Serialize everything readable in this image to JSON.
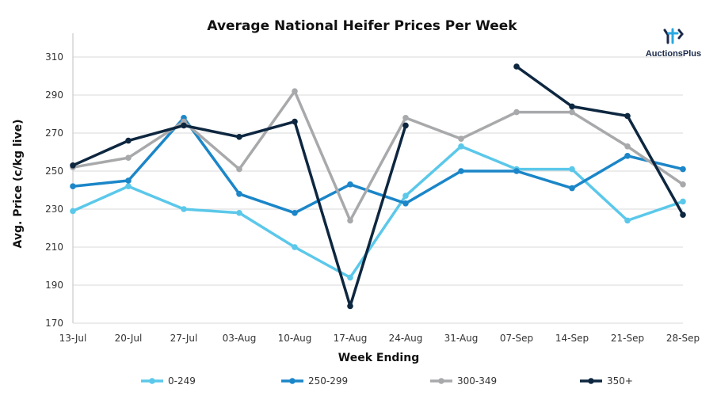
{
  "brand": {
    "name": "AuctionsPlus"
  },
  "chart_data": {
    "type": "line",
    "title": "Average National Heifer Prices Per Week",
    "xlabel": "Week Ending",
    "ylabel": "Avg. Price (c/kg live)",
    "categories": [
      "13-Jul",
      "20-Jul",
      "27-Jul",
      "03-Aug",
      "10-Aug",
      "17-Aug",
      "24-Aug",
      "31-Aug",
      "07-Sep",
      "14-Sep",
      "21-Sep",
      "28-Sep"
    ],
    "ylim": [
      170,
      320
    ],
    "yticks": [
      170,
      190,
      210,
      230,
      250,
      270,
      290,
      310
    ],
    "grid": "horizontal",
    "legend_position": "bottom",
    "series": [
      {
        "name": "0-249",
        "color": "#5bc8ea",
        "values": [
          229,
          242,
          230,
          228,
          210,
          194,
          237,
          263,
          251,
          251,
          224,
          234
        ]
      },
      {
        "name": "250-299",
        "color": "#1b86c8",
        "values": [
          242,
          245,
          278,
          238,
          228,
          243,
          233,
          250,
          250,
          241,
          258,
          251
        ]
      },
      {
        "name": "300-349",
        "color": "#a8a9ab",
        "values": [
          252,
          257,
          276,
          251,
          292,
          224,
          278,
          267,
          281,
          281,
          263,
          243
        ]
      },
      {
        "name": "350+",
        "color": "#0e2740",
        "values": [
          253,
          266,
          274,
          268,
          276,
          179,
          274,
          null,
          305,
          284,
          279,
          227
        ]
      }
    ]
  }
}
